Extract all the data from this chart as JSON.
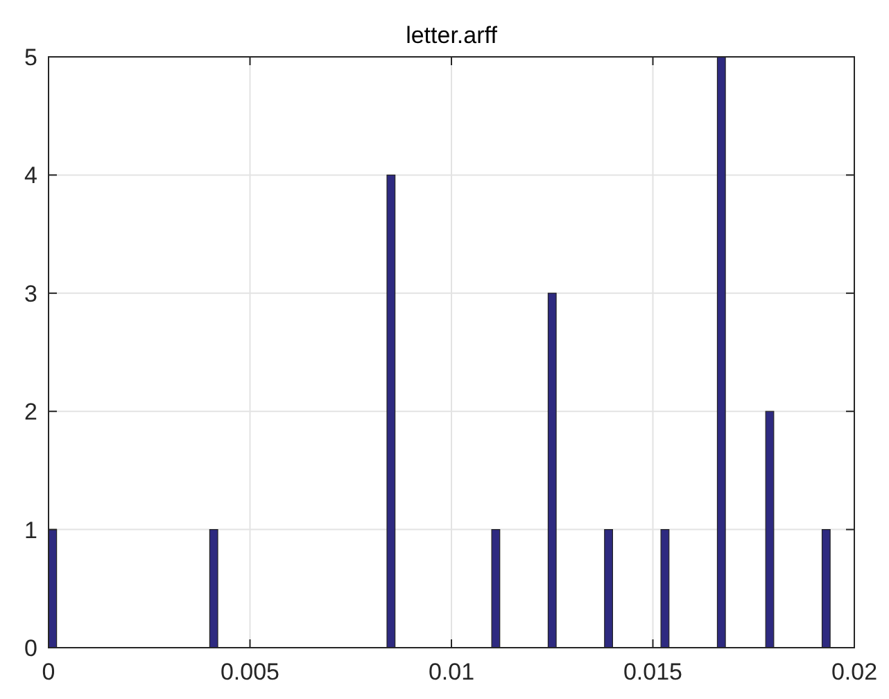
{
  "chart_data": {
    "type": "histogram",
    "title": "letter.arff",
    "bins": [
      0,
      0.0002,
      0.004,
      0.0042,
      0.0084,
      0.0086,
      0.011,
      0.0112,
      0.0124,
      0.0126,
      0.0138,
      0.014,
      0.0152,
      0.0154,
      0.0166,
      0.0168,
      0.0178,
      0.018,
      0.0192,
      0.0194
    ],
    "values": [
      1,
      0,
      1,
      0,
      4,
      0,
      1,
      0,
      3,
      0,
      1,
      0,
      1,
      0,
      5,
      0,
      2,
      0,
      1
    ],
    "color": "#2e2a80",
    "xlim": [
      0,
      0.02
    ],
    "xticks": [
      0,
      0.005,
      0.01,
      0.015,
      0.02
    ],
    "ylim": [
      0,
      5
    ],
    "yticks": [
      0,
      1,
      2,
      3,
      4,
      5
    ],
    "grid": true
  }
}
